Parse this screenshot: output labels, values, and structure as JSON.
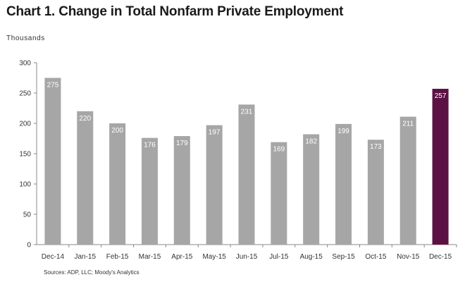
{
  "chart_data": {
    "type": "bar",
    "title": "Chart 1. Change in Total Nonfarm Private Employment",
    "ylabel": "Thousands",
    "source": "Sources: ADP, LLC; Moody's Analytics",
    "categories": [
      "Dec-14",
      "Jan-15",
      "Feb-15",
      "Mar-15",
      "Apr-15",
      "May-15",
      "Jun-15",
      "Jul-15",
      "Aug-15",
      "Sep-15",
      "Oct-15",
      "Nov-15",
      "Dec-15"
    ],
    "values": [
      275,
      220,
      200,
      176,
      179,
      197,
      231,
      169,
      182,
      199,
      173,
      211,
      257
    ],
    "ylim": [
      0,
      300
    ],
    "yticks": [
      0,
      50,
      100,
      150,
      200,
      250,
      300
    ],
    "grid": false,
    "legend": "none",
    "colors": {
      "default": "#a6a6a6",
      "highlight": "#5c1145",
      "axis": "#888888",
      "label": "#ffffff"
    },
    "highlight_index": 12
  }
}
